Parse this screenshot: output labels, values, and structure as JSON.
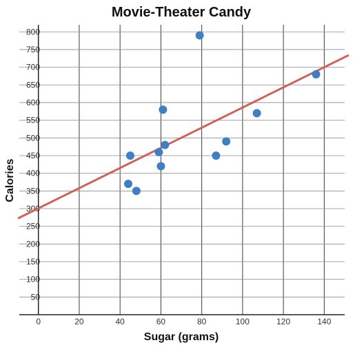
{
  "chart_data": {
    "type": "scatter",
    "title": "Movie-Theater Candy",
    "xlabel": "Sugar (grams)",
    "ylabel": "Calories",
    "xlim": [
      -8,
      150
    ],
    "ylim": [
      0,
      820
    ],
    "x_ticks": [
      0,
      20,
      40,
      60,
      80,
      100,
      120,
      140
    ],
    "y_ticks": [
      50,
      100,
      150,
      200,
      250,
      300,
      350,
      400,
      450,
      500,
      550,
      600,
      650,
      700,
      750,
      800
    ],
    "grid": true,
    "points": [
      {
        "x": 44,
        "y": 370
      },
      {
        "x": 45,
        "y": 450
      },
      {
        "x": 48,
        "y": 350
      },
      {
        "x": 59,
        "y": 460
      },
      {
        "x": 60,
        "y": 420
      },
      {
        "x": 61,
        "y": 580
      },
      {
        "x": 62,
        "y": 480
      },
      {
        "x": 79,
        "y": 790
      },
      {
        "x": 87,
        "y": 450
      },
      {
        "x": 92,
        "y": 490
      },
      {
        "x": 107,
        "y": 570
      },
      {
        "x": 136,
        "y": 680
      }
    ],
    "trend_line": {
      "intercept": 301,
      "slope": 2.85
    },
    "colors": {
      "points": "#3f7fc4",
      "trend_line": "#d0605a"
    }
  }
}
